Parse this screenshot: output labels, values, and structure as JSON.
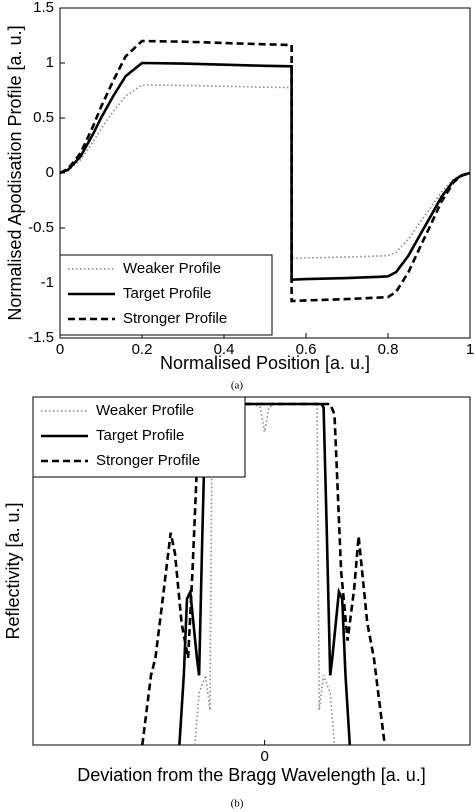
{
  "chart_data": [
    {
      "type": "line",
      "caption": "(a)",
      "xlabel": "Normalised Position [a. u.]",
      "ylabel": "Normalised Apodisation Profile [a. u.]",
      "xlim": [
        0,
        1
      ],
      "ylim": [
        -1.5,
        1.5
      ],
      "xticks": [
        0,
        0.2,
        0.4,
        0.6,
        0.8,
        1
      ],
      "yticks": [
        -1.5,
        -1,
        -0.5,
        0,
        0.5,
        1,
        1.5
      ],
      "legend": "lower left",
      "series": [
        {
          "name": "Weaker Profile",
          "color": "#888888",
          "dash": "dotted",
          "x": [
            0,
            0.02,
            0.05,
            0.08,
            0.1,
            0.13,
            0.16,
            0.2,
            0.3,
            0.4,
            0.5,
            0.565,
            0.565,
            0.6,
            0.7,
            0.8,
            0.82,
            0.85,
            0.88,
            0.9,
            0.93,
            0.96,
            0.98,
            1
          ],
          "values": [
            0,
            0.02,
            0.12,
            0.28,
            0.4,
            0.56,
            0.7,
            0.8,
            0.796,
            0.788,
            0.78,
            0.776,
            -0.776,
            -0.772,
            -0.764,
            -0.752,
            -0.72,
            -0.6,
            -0.44,
            -0.336,
            -0.176,
            -0.056,
            -0.016,
            0
          ]
        },
        {
          "name": "Target Profile",
          "color": "#000000",
          "dash": "solid",
          "x": [
            0,
            0.02,
            0.05,
            0.08,
            0.1,
            0.13,
            0.16,
            0.2,
            0.3,
            0.4,
            0.5,
            0.565,
            0.565,
            0.6,
            0.7,
            0.8,
            0.82,
            0.85,
            0.88,
            0.9,
            0.93,
            0.96,
            0.98,
            1
          ],
          "values": [
            0,
            0.03,
            0.15,
            0.35,
            0.5,
            0.7,
            0.88,
            1,
            0.995,
            0.985,
            0.975,
            0.97,
            -0.97,
            -0.965,
            -0.955,
            -0.94,
            -0.9,
            -0.75,
            -0.55,
            -0.42,
            -0.22,
            -0.07,
            -0.02,
            0
          ]
        },
        {
          "name": "Stronger Profile",
          "color": "#000000",
          "dash": "dashed",
          "x": [
            0,
            0.02,
            0.05,
            0.08,
            0.1,
            0.13,
            0.16,
            0.2,
            0.3,
            0.4,
            0.5,
            0.565,
            0.565,
            0.6,
            0.7,
            0.8,
            0.82,
            0.85,
            0.88,
            0.9,
            0.93,
            0.96,
            0.98,
            1
          ],
          "values": [
            0,
            0.04,
            0.18,
            0.42,
            0.6,
            0.84,
            1.06,
            1.2,
            1.194,
            1.182,
            1.17,
            1.164,
            -1.164,
            -1.158,
            -1.146,
            -1.128,
            -1.08,
            -0.9,
            -0.66,
            -0.504,
            -0.264,
            -0.084,
            -0.024,
            0
          ]
        }
      ]
    },
    {
      "type": "line",
      "caption": "(b)",
      "xlabel": "Deviation from the Bragg Wavelength [a. u.]",
      "ylabel": "Reflectivity [a. u.]",
      "xlim": [
        -1.06,
        0.94
      ],
      "ylim": [
        0,
        1
      ],
      "xticks": [
        0
      ],
      "legend": "upper left",
      "series": [
        {
          "name": "Weaker Profile",
          "color": "#888888",
          "dash": "dotted",
          "x": [
            -0.32,
            -0.3,
            -0.27,
            -0.25,
            -0.24,
            -0.2,
            -0.05,
            -0.02,
            0,
            0.02,
            0.05,
            0.22,
            0.24,
            0.25,
            0.27,
            0.3,
            0.32
          ],
          "values": [
            0,
            0.15,
            0.2,
            0.1,
            0.98,
            0.98,
            0.98,
            0.97,
            0.9,
            0.97,
            0.98,
            0.98,
            0.98,
            0.1,
            0.2,
            0.15,
            0
          ]
        },
        {
          "name": "Target Profile",
          "color": "#000000",
          "dash": "solid",
          "x": [
            -0.39,
            -0.37,
            -0.355,
            -0.34,
            -0.31,
            -0.3,
            -0.285,
            -0.27,
            -0.26,
            0.26,
            0.27,
            0.285,
            0.3,
            0.31,
            0.34,
            0.355,
            0.37,
            0.39
          ],
          "values": [
            0,
            0.2,
            0.42,
            0.44,
            0.25,
            0.2,
            0.6,
            0.97,
            0.98,
            0.98,
            0.97,
            0.6,
            0.2,
            0.25,
            0.44,
            0.42,
            0.2,
            0
          ]
        },
        {
          "name": "Stronger Profile",
          "color": "#000000",
          "dash": "dashed",
          "x": [
            -0.56,
            -0.52,
            -0.5,
            -0.47,
            -0.43,
            -0.41,
            -0.38,
            -0.35,
            -0.33,
            -0.3,
            -0.28,
            0.3,
            0.32,
            0.35,
            0.38,
            0.41,
            0.43,
            0.47,
            0.5,
            0.52,
            0.55
          ],
          "values": [
            0,
            0.2,
            0.25,
            0.4,
            0.61,
            0.55,
            0.35,
            0.25,
            0.5,
            0.95,
            0.98,
            0.98,
            0.95,
            0.5,
            0.3,
            0.45,
            0.6,
            0.35,
            0.25,
            0.15,
            0
          ]
        }
      ]
    }
  ]
}
